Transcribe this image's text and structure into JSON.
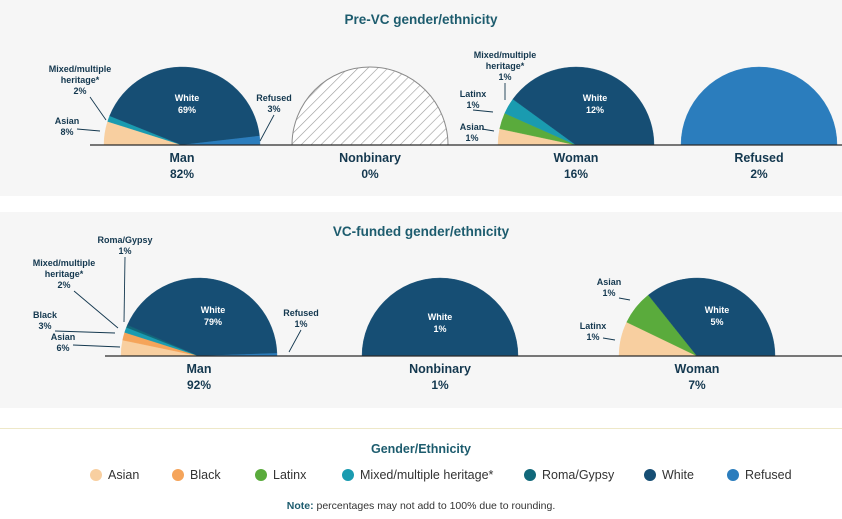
{
  "chart_data": [
    {
      "type": "pie",
      "title": "Pre-VC gender/ethnicity",
      "groups": [
        {
          "name": "Man",
          "share": "82%",
          "slices": [
            {
              "category": "Asian",
              "value": 8
            },
            {
              "category": "Black",
              "value": 0
            },
            {
              "category": "Latinx",
              "value": 0
            },
            {
              "category": "Mixed/multiple heritage*",
              "value": 2
            },
            {
              "category": "Roma/Gypsy",
              "value": 0
            },
            {
              "category": "White",
              "value": 69
            },
            {
              "category": "Refused",
              "value": 3
            }
          ],
          "labels": [
            {
              "category": "Asian",
              "text": [
                "Asian",
                "8%"
              ]
            },
            {
              "category": "Mixed/multiple heritage*",
              "text": [
                "Mixed/multiple",
                "heritage*",
                "2%"
              ]
            },
            {
              "category": "White",
              "text": [
                "White",
                "69%"
              ]
            },
            {
              "category": "Refused",
              "text": [
                "Refused",
                "3%"
              ]
            }
          ]
        },
        {
          "name": "Nonbinary",
          "share": "0%",
          "empty": true,
          "slices": [],
          "labels": []
        },
        {
          "name": "Woman",
          "share": "16%",
          "slices": [
            {
              "category": "Asian",
              "value": 1
            },
            {
              "category": "Black",
              "value": 0
            },
            {
              "category": "Latinx",
              "value": 1
            },
            {
              "category": "Mixed/multiple heritage*",
              "value": 1
            },
            {
              "category": "Roma/Gypsy",
              "value": 0
            },
            {
              "category": "White",
              "value": 12
            },
            {
              "category": "Refused",
              "value": 0
            }
          ],
          "labels": [
            {
              "category": "Asian",
              "text": [
                "Asian",
                "1%"
              ]
            },
            {
              "category": "Latinx",
              "text": [
                "Latinx",
                "1%"
              ]
            },
            {
              "category": "Mixed/multiple heritage*",
              "text": [
                "Mixed/multiple",
                "heritage*",
                "1%"
              ]
            },
            {
              "category": "White",
              "text": [
                "White",
                "12%"
              ]
            }
          ]
        },
        {
          "name": "Refused",
          "share": "2%",
          "slices": [
            {
              "category": "Refused",
              "value": 2
            }
          ],
          "labels": []
        }
      ]
    },
    {
      "type": "pie",
      "title": "VC-funded gender/ethnicity",
      "groups": [
        {
          "name": "Man",
          "share": "92%",
          "slices": [
            {
              "category": "Asian",
              "value": 6
            },
            {
              "category": "Black",
              "value": 3
            },
            {
              "category": "Latinx",
              "value": 0
            },
            {
              "category": "Mixed/multiple heritage*",
              "value": 2
            },
            {
              "category": "Roma/Gypsy",
              "value": 1
            },
            {
              "category": "White",
              "value": 79
            },
            {
              "category": "Refused",
              "value": 1
            }
          ],
          "labels": [
            {
              "category": "Asian",
              "text": [
                "Asian",
                "6%"
              ]
            },
            {
              "category": "Black",
              "text": [
                "Black",
                "3%"
              ]
            },
            {
              "category": "Mixed/multiple heritage*",
              "text": [
                "Mixed/multiple",
                "heritage*",
                "2%"
              ]
            },
            {
              "category": "Roma/Gypsy",
              "text": [
                "Roma/Gypsy",
                "1%"
              ]
            },
            {
              "category": "White",
              "text": [
                "White",
                "79%"
              ]
            },
            {
              "category": "Refused",
              "text": [
                "Refused",
                "1%"
              ]
            }
          ]
        },
        {
          "name": "Nonbinary",
          "share": "1%",
          "slices": [
            {
              "category": "White",
              "value": 1
            }
          ],
          "labels": [
            {
              "category": "White",
              "text": [
                "White",
                "1%"
              ]
            }
          ]
        },
        {
          "name": "Woman",
          "share": "7%",
          "slices": [
            {
              "category": "Asian",
              "value": 1
            },
            {
              "category": "Black",
              "value": 0
            },
            {
              "category": "Latinx",
              "value": 1
            },
            {
              "category": "Mixed/multiple heritage*",
              "value": 0
            },
            {
              "category": "Roma/Gypsy",
              "value": 0
            },
            {
              "category": "White",
              "value": 5
            },
            {
              "category": "Refused",
              "value": 0
            }
          ],
          "labels": [
            {
              "category": "Asian",
              "text": [
                "Asian",
                "1%"
              ]
            },
            {
              "category": "Latinx",
              "text": [
                "Latinx",
                "1%"
              ]
            },
            {
              "category": "White",
              "text": [
                "White",
                "5%"
              ]
            }
          ]
        }
      ]
    }
  ],
  "legend": {
    "title": "Gender/Ethnicity",
    "items": [
      {
        "label": "Asian",
        "color": "#f8cfa0"
      },
      {
        "label": "Black",
        "color": "#f5a45a"
      },
      {
        "label": "Latinx",
        "color": "#5aab3c"
      },
      {
        "label": "Mixed/multiple heritage*",
        "color": "#1a9bb0"
      },
      {
        "label": "Roma/Gypsy",
        "color": "#11687a"
      },
      {
        "label": "White",
        "color": "#164e74"
      },
      {
        "label": "Refused",
        "color": "#2b7dbd"
      }
    ]
  },
  "note": {
    "label": "Note:",
    "text": " percentages may not add to 100% due to rounding."
  },
  "colors": {
    "title": "#1d5c6e",
    "label": "#14384f",
    "panel": "#f6f6f6"
  }
}
